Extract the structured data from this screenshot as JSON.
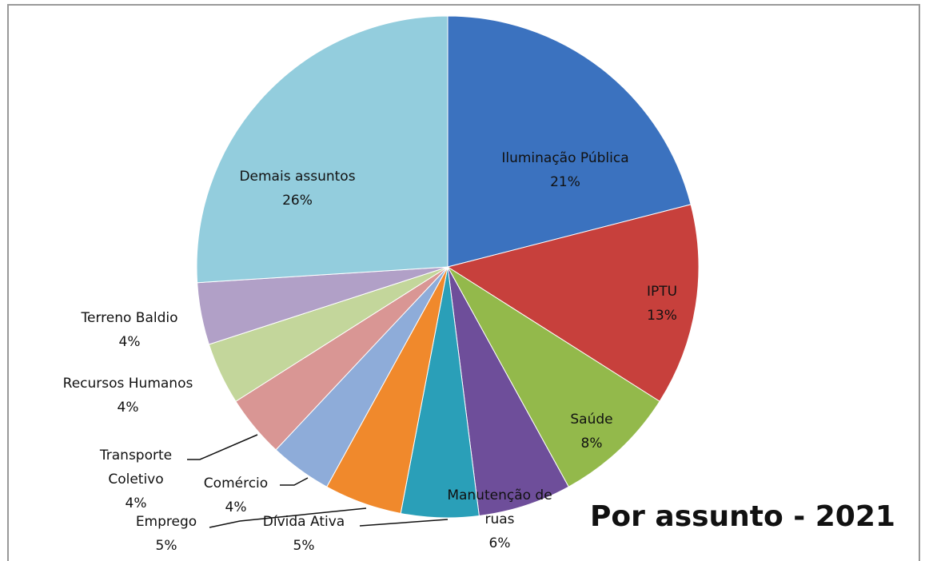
{
  "chart_data": {
    "type": "pie",
    "title": "Por assunto - 2021",
    "categories": [
      "Iluminação Pública",
      "IPTU",
      "Saúde",
      "Manutenção de ruas",
      "Dívida Ativa",
      "Emprego",
      "Comércio",
      "Transporte Coletivo",
      "Recursos Humanos",
      "Terreno Baldio",
      "Demais assuntos"
    ],
    "values": [
      21,
      13,
      8,
      6,
      5,
      5,
      4,
      4,
      4,
      4,
      26
    ],
    "value_labels": [
      "21%",
      "13%",
      "8%",
      "6%",
      "5%",
      "5%",
      "4%",
      "4%",
      "4%",
      "4%",
      "26%"
    ],
    "colors": [
      "#3b72bf",
      "#c7403c",
      "#93b94b",
      "#6e4e9a",
      "#2a9fb8",
      "#f0892c",
      "#8eacd9",
      "#d99694",
      "#c3d69b",
      "#b1a0c7",
      "#93cddd"
    ]
  }
}
